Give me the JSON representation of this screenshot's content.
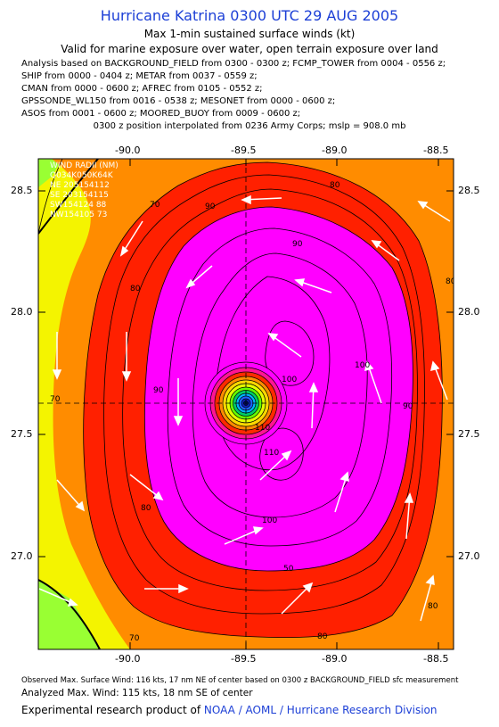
{
  "header": {
    "title": "Hurricane Katrina 0300 UTC 29 AUG 2005",
    "subtitle1": "Max 1-min sustained surface winds (kt)",
    "subtitle2": "Valid for marine exposure over water, open terrain exposure over land"
  },
  "analysis_lines": [
    "Analysis based on  BACKGROUND_FIELD from 0300 - 0300 z;  FCMP_TOWER from 0004 - 0556 z;",
    "SHIP from 0000 - 0404 z;  METAR from 0037 - 0559 z;",
    "CMAN from 0000 - 0600 z;  AFREC from 0105 - 0552 z;",
    "GPSSONDE_WL150 from 0016 - 0538 z;  MESONET from 0000 - 0600 z;",
    "ASOS from 0001 - 0600 z;  MOORED_BUOY from 0009 - 0600 z;"
  ],
  "position_line": "0300 z position interpolated from 0236 Army Corps; mslp = 908.0 mb",
  "axes": {
    "lon_ticks": [
      "-90.0",
      "-89.5",
      "-89.0",
      "-88.5"
    ],
    "lat_ticks": [
      "28.5",
      "28.0",
      "27.5",
      "27.0"
    ]
  },
  "wind_radii": {
    "title": "WIND RADII (NM)",
    "header": "Q034K050K64K",
    "rows": [
      "NE 205154112",
      "SE 203154115",
      "SW154124  88",
      "NW154105  73"
    ]
  },
  "contour_labels": [
    "70",
    "80",
    "90",
    "100",
    "110",
    "80",
    "70",
    "80",
    "90",
    "100",
    "110",
    "100",
    "90",
    "80",
    "50",
    "80",
    "90",
    "80",
    "70"
  ],
  "footer": {
    "line1": "Observed Max. Surface Wind: 116 kts, 17 nm NE of center based on 0300 z BACKGROUND_FIELD sfc measurement",
    "line2": "Analyzed Max. Wind: 115 kts, 18 nm SE of center",
    "line3_prefix": "Experimental research product of ",
    "line3_org": "NOAA / AOML / Hurricane Research Division"
  },
  "colors": {
    "title_blue": "#1c3fd6",
    "wind_70_yellow": "#f4f400",
    "wind_80_orange": "#ff8c00",
    "wind_90_red": "#ff2000",
    "wind_100_magenta": "#ff00ff",
    "land_green": "#99ff33"
  }
}
